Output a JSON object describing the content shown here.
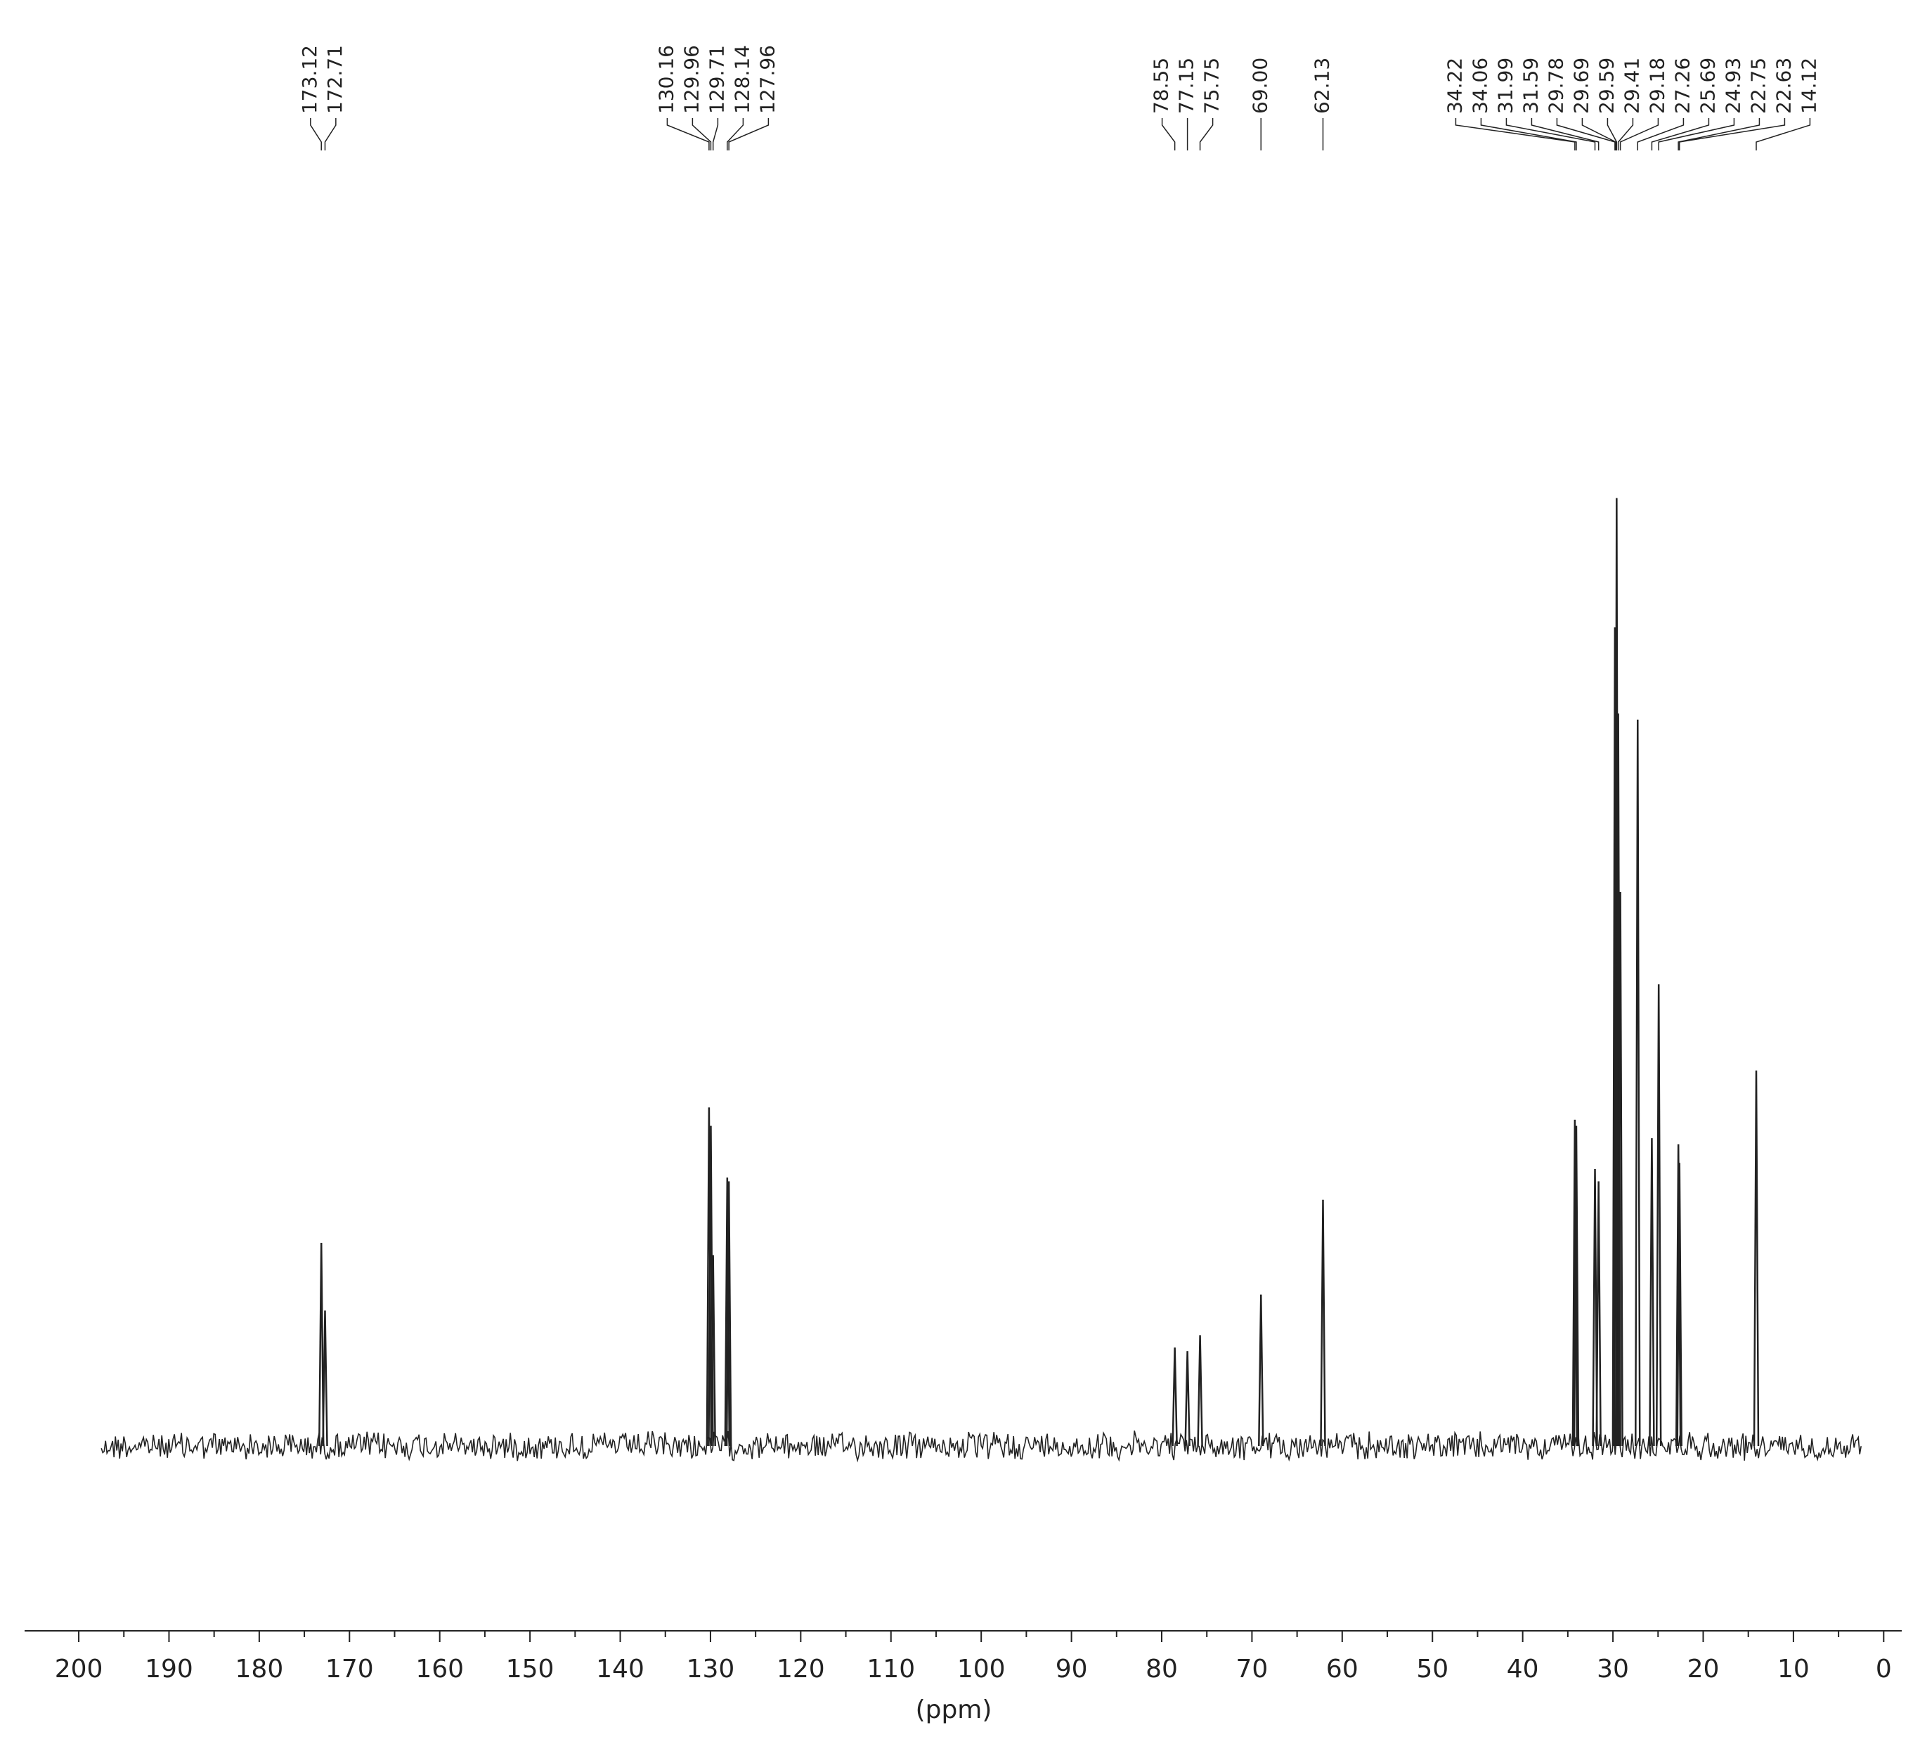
{
  "chart_data": {
    "type": "nmr",
    "x_label": "(ppm)",
    "xlim": [
      206,
      -2
    ],
    "xticks": [
      200,
      190,
      180,
      170,
      160,
      150,
      140,
      130,
      120,
      110,
      100,
      90,
      80,
      70,
      60,
      50,
      40,
      30,
      20,
      10,
      0
    ],
    "xminorticks": [
      195,
      185,
      175,
      165,
      155,
      145,
      135,
      125,
      115,
      105,
      95,
      85,
      75,
      65,
      55,
      45,
      35,
      25,
      15,
      5
    ],
    "ylim": [
      0,
      800
    ],
    "color": "#222222",
    "peak_labels": [
      "173.12",
      "172.71",
      "130.16",
      "129.96",
      "129.71",
      "128.14",
      "127.96",
      "78.55",
      "77.15",
      "75.75",
      "69.00",
      "62.13",
      "34.22",
      "34.06",
      "31.99",
      "31.59",
      "29.78",
      "29.69",
      "29.59",
      "29.41",
      "29.18",
      "27.26",
      "25.69",
      "24.93",
      "22.75",
      "22.63",
      "14.12"
    ],
    "x": [
      173.12,
      172.71,
      130.16,
      129.96,
      129.71,
      128.14,
      127.96,
      78.55,
      77.15,
      75.75,
      69.0,
      62.13,
      34.22,
      34.06,
      31.99,
      31.59,
      29.78,
      29.69,
      29.59,
      29.41,
      29.18,
      27.26,
      25.69,
      24.93,
      22.75,
      22.63,
      14.12
    ],
    "values": [
      165,
      110,
      275,
      260,
      155,
      218,
      215,
      80,
      77,
      90,
      123,
      200,
      265,
      260,
      225,
      215,
      665,
      660,
      770,
      595,
      450,
      590,
      250,
      375,
      245,
      230,
      305
    ]
  }
}
